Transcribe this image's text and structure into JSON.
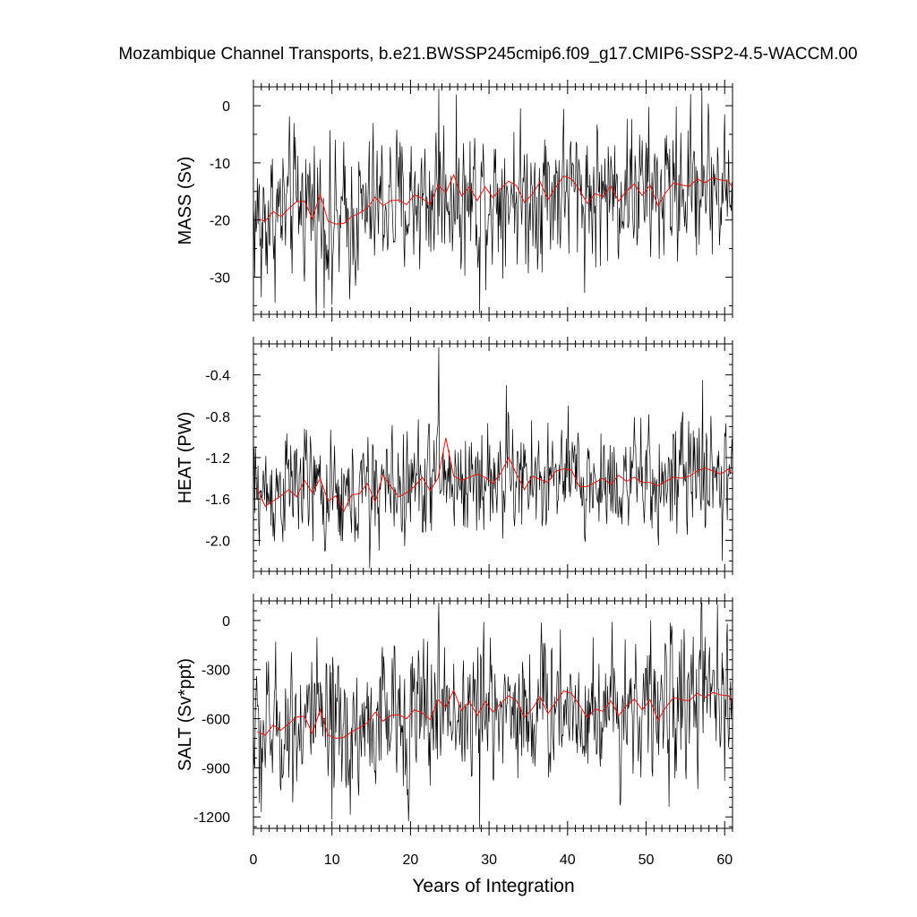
{
  "chart_data": {
    "type": "line",
    "title": "Mozambique Channel Transports, b.e21.BWSSP245cmip6.f09_g17.CMIP6-SSP2-4.5-WACCM.00",
    "xlabel": "Years of Integration",
    "xlim": [
      0,
      61
    ],
    "xticks": [
      0,
      10,
      20,
      30,
      40,
      50,
      60
    ],
    "panels": [
      {
        "ylabel": "MASS (Sv)",
        "ylim": [
          -36.5,
          3.3
        ],
        "yticks": [
          0,
          -10,
          -20,
          -30
        ],
        "yminor": 2,
        "monthly_base": [
          -19.8,
          -19.7,
          -19.0,
          -19.1,
          -18.4,
          -17.8,
          -16.8,
          -16.6,
          -17.6,
          -19.4,
          -20.5,
          -20.8,
          -20.3,
          -19.3,
          -18.8,
          -18.2,
          -17.1,
          -16.8,
          -17.1,
          -17.3,
          -16.8,
          -15.8,
          -16.6,
          -15.8,
          -14.9,
          -14.7,
          -15.6,
          -16.9,
          -15.6,
          -15.3,
          -15.5,
          -14.9,
          -14.6,
          -14.6,
          -15.5,
          -16.2,
          -15.1,
          -14.8,
          -14.5,
          -14.2,
          -14.6,
          -15.1,
          -15.3,
          -15.8,
          -15.2,
          -15.1,
          -14.9,
          -14.6,
          -14.3,
          -14.6,
          -15.0,
          -15.5,
          -15.4,
          -14.7,
          -14.1,
          -14.0,
          -13.6,
          -13.4,
          -13.2,
          -13.6,
          -14.4,
          -14.8
        ],
        "monthly_amplitude": 6.2,
        "monthly_extremes": [
          [
            1,
            -33.5
          ],
          [
            23.6,
            3.0
          ],
          [
            28.8,
            -36.3
          ],
          [
            57.1,
            3.1
          ],
          [
            10,
            -34.8
          ]
        ],
        "annual": [
          -19.8,
          -20.2,
          -18.5,
          -19.4,
          -18.0,
          -16.8,
          -16.7,
          -19.8,
          -15.5,
          -20.2,
          -20.7,
          -20.6,
          -19.4,
          -18.8,
          -17.9,
          -16.0,
          -17.5,
          -16.6,
          -16.5,
          -17.3,
          -15.6,
          -16.2,
          -17.3,
          -13.9,
          -15.2,
          -12.1,
          -15.8,
          -14.2,
          -16.6,
          -14.2,
          -16.1,
          -14.5,
          -13.2,
          -14.0,
          -16.9,
          -15.5,
          -13.3,
          -16.4,
          -14.3,
          -12.3,
          -12.8,
          -14.7,
          -17.1,
          -15.4,
          -15.9,
          -14.1,
          -16.7,
          -14.9,
          -13.7,
          -15.7,
          -13.9,
          -17.5,
          -15.2,
          -13.5,
          -13.9,
          -14.1,
          -12.8,
          -13.5,
          -12.6,
          -13.0,
          -13.2,
          -15.4
        ]
      },
      {
        "ylabel": "HEAT (PW)",
        "ylim": [
          -2.3,
          -0.1
        ],
        "yticks": [
          -0.4,
          -0.8,
          -1.2,
          -1.6,
          -2.0
        ],
        "yminor": 4,
        "monthly_base": [
          -1.52,
          -1.55,
          -1.53,
          -1.52,
          -1.49,
          -1.46,
          -1.44,
          -1.46,
          -1.52,
          -1.58,
          -1.62,
          -1.63,
          -1.6,
          -1.56,
          -1.53,
          -1.5,
          -1.47,
          -1.46,
          -1.48,
          -1.5,
          -1.48,
          -1.43,
          -1.44,
          -1.36,
          -1.38,
          -1.39,
          -1.42,
          -1.45,
          -1.41,
          -1.39,
          -1.42,
          -1.4,
          -1.37,
          -1.38,
          -1.42,
          -1.45,
          -1.43,
          -1.42,
          -1.41,
          -1.39,
          -1.4,
          -1.43,
          -1.45,
          -1.46,
          -1.44,
          -1.43,
          -1.42,
          -1.41,
          -1.42,
          -1.43,
          -1.44,
          -1.45,
          -1.44,
          -1.42,
          -1.41,
          -1.4,
          -1.38,
          -1.36,
          -1.34,
          -1.35,
          -1.38,
          -1.4
        ],
        "monthly_amplitude": 0.26,
        "monthly_extremes": [
          [
            23.6,
            -0.13
          ],
          [
            32.2,
            -0.5
          ],
          [
            57.2,
            -0.45
          ],
          [
            59.7,
            -2.2
          ],
          [
            14.8,
            -2.27
          ]
        ],
        "annual": [
          -1.5,
          -1.67,
          -1.62,
          -1.57,
          -1.51,
          -1.58,
          -1.42,
          -1.54,
          -1.4,
          -1.62,
          -1.57,
          -1.72,
          -1.56,
          -1.55,
          -1.45,
          -1.63,
          -1.37,
          -1.48,
          -1.58,
          -1.54,
          -1.48,
          -1.39,
          -1.52,
          -1.4,
          -1.01,
          -1.38,
          -1.42,
          -1.39,
          -1.36,
          -1.39,
          -1.45,
          -1.35,
          -1.2,
          -1.36,
          -1.51,
          -1.38,
          -1.41,
          -1.44,
          -1.33,
          -1.31,
          -1.32,
          -1.48,
          -1.48,
          -1.44,
          -1.4,
          -1.46,
          -1.37,
          -1.43,
          -1.39,
          -1.44,
          -1.44,
          -1.47,
          -1.43,
          -1.39,
          -1.4,
          -1.38,
          -1.33,
          -1.3,
          -1.33,
          -1.36,
          -1.31,
          -1.41
        ]
      },
      {
        "ylabel": "SALT (Sv*ppt)",
        "ylim": [
          -1270,
          120
        ],
        "yticks": [
          0,
          -300,
          -600,
          -900,
          -1200
        ],
        "yminor": 5,
        "monthly_base": [
          -690,
          -688,
          -665,
          -668,
          -645,
          -622,
          -588,
          -580,
          -615,
          -678,
          -718,
          -728,
          -710,
          -675,
          -658,
          -637,
          -598,
          -588,
          -598,
          -605,
          -588,
          -553,
          -581,
          -553,
          -521,
          -514,
          -546,
          -591,
          -546,
          -535,
          -542,
          -521,
          -511,
          -511,
          -542,
          -567,
          -528,
          -518,
          -507,
          -497,
          -511,
          -528,
          -535,
          -553,
          -532,
          -528,
          -521,
          -511,
          -500,
          -511,
          -525,
          -542,
          -539,
          -514,
          -493,
          -490,
          -476,
          -469,
          -462,
          -476,
          -504,
          -518
        ],
        "monthly_amplitude": 215,
        "monthly_extremes": [
          [
            1,
            -1170
          ],
          [
            23.6,
            110
          ],
          [
            28.8,
            -1265
          ],
          [
            57.1,
            110
          ],
          [
            10,
            -1215
          ]
        ],
        "annual": [
          -680,
          -700,
          -640,
          -670,
          -630,
          -590,
          -585,
          -690,
          -545,
          -700,
          -720,
          -715,
          -680,
          -655,
          -625,
          -560,
          -615,
          -580,
          -575,
          -600,
          -545,
          -565,
          -605,
          -485,
          -530,
          -425,
          -550,
          -495,
          -580,
          -495,
          -560,
          -505,
          -460,
          -490,
          -590,
          -540,
          -465,
          -570,
          -500,
          -430,
          -445,
          -515,
          -595,
          -540,
          -555,
          -490,
          -580,
          -520,
          -480,
          -545,
          -485,
          -610,
          -530,
          -470,
          -485,
          -490,
          -445,
          -470,
          -440,
          -455,
          -460,
          -540
        ]
      }
    ],
    "colors": {
      "monthly": "#000000",
      "annual": "#e8110e"
    }
  }
}
